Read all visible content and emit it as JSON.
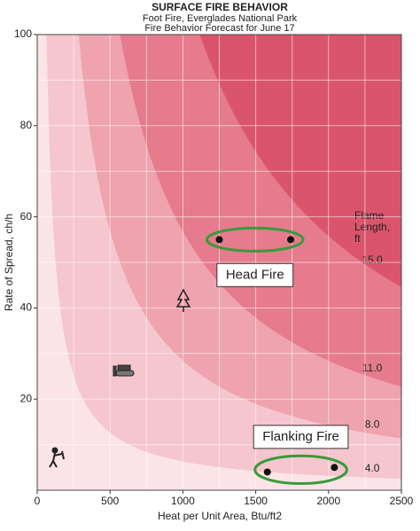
{
  "chart_data": {
    "type": "hauling",
    "title": "SURFACE FIRE BEHAVIOR",
    "subtitle": [
      "Foot Fire, Everglades National Park",
      "Fire Behavior Forecast for June 17"
    ],
    "x_label": "Heat per Unit Area, Btu/ft2",
    "y_label": "Rate of Spread, ch/h",
    "xlim": [
      0,
      2500
    ],
    "ylim": [
      0,
      100
    ],
    "xticks": [
      0,
      500,
      1000,
      1500,
      2000,
      2500
    ],
    "x_minor_ticks": [
      250,
      750,
      1250,
      1750,
      2250
    ],
    "yticks": [
      20,
      40,
      60,
      80,
      100
    ],
    "y_minor_ticks": [
      10,
      30,
      50,
      70,
      90
    ],
    "grid": true,
    "zone_title": [
      "Flame",
      "Length,",
      "ft"
    ],
    "base_color": "#fbe4e7",
    "zones": [
      {
        "flame_length": 4,
        "label": "4.0",
        "color": "#f5c6cd"
      },
      {
        "flame_length": 8,
        "label": "8.0",
        "color": "#eea3ae"
      },
      {
        "flame_length": 11,
        "label": "11.0",
        "color": "#e57b8d"
      },
      {
        "flame_length": 15,
        "label": "15.0",
        "color": "#da556c"
      }
    ],
    "series": [
      {
        "name": "Head Fire",
        "x": [
          1250,
          1740
        ],
        "values": [
          55,
          55
        ],
        "color": "#111"
      },
      {
        "name": "Flanking Fire",
        "x": [
          1580,
          2040
        ],
        "values": [
          4,
          5
        ],
        "color": "#111"
      }
    ],
    "ellipse_color": "#3a9a3a"
  }
}
